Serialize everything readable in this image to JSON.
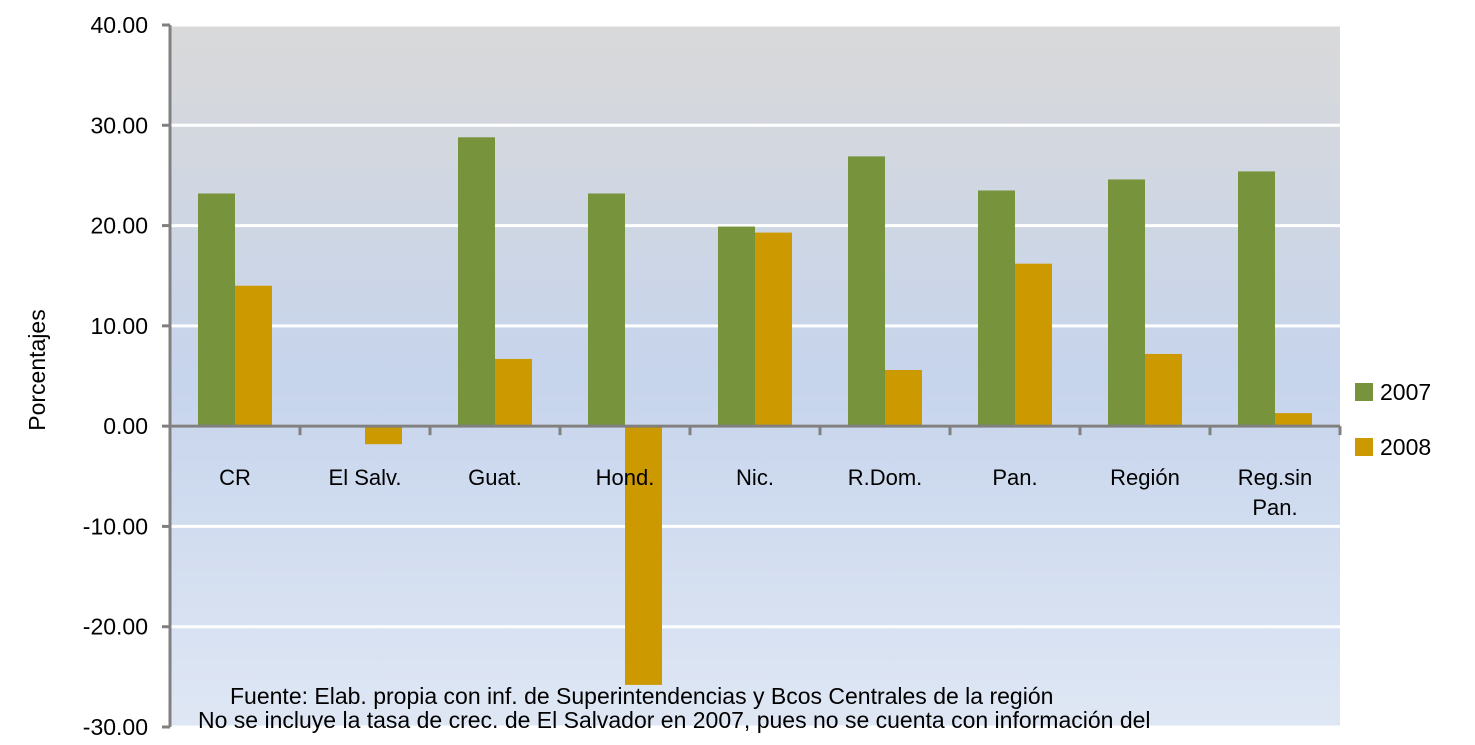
{
  "chart_data": {
    "type": "bar",
    "y_label": "Porcentajes",
    "categories": [
      "CR",
      "El Salv.",
      "Guat.",
      "Hond.",
      "Nic.",
      "R.Dom.",
      "Pan.",
      "Región",
      "Reg.sin Pan."
    ],
    "series": [
      {
        "name": "2007",
        "color": "#77933c",
        "values": [
          23.2,
          null,
          28.8,
          23.2,
          19.9,
          26.9,
          23.5,
          24.6,
          25.4
        ]
      },
      {
        "name": "2008",
        "color": "#cc9900",
        "values": [
          14.0,
          -1.8,
          6.7,
          -25.8,
          19.3,
          5.6,
          16.2,
          7.2,
          1.3
        ]
      }
    ],
    "ylim": [
      -30,
      40
    ],
    "yticks": [
      {
        "value": -30,
        "label": "-30.00"
      },
      {
        "value": -20,
        "label": "-20.00"
      },
      {
        "value": -10,
        "label": "-10.00"
      },
      {
        "value": 0,
        "label": "0.00"
      },
      {
        "value": 10,
        "label": "10.00"
      },
      {
        "value": 20,
        "label": "20.00"
      },
      {
        "value": 30,
        "label": "30.00"
      },
      {
        "value": 40,
        "label": "40.00"
      }
    ],
    "grid": true,
    "legend": "right",
    "annotations": [
      "Fuente: Elab. propia con inf. de Superintendencias y Bcos Centrales de la región",
      "No se incluye la tasa de crec. de El Salvador en 2007, pues no se cuenta con información del"
    ]
  }
}
